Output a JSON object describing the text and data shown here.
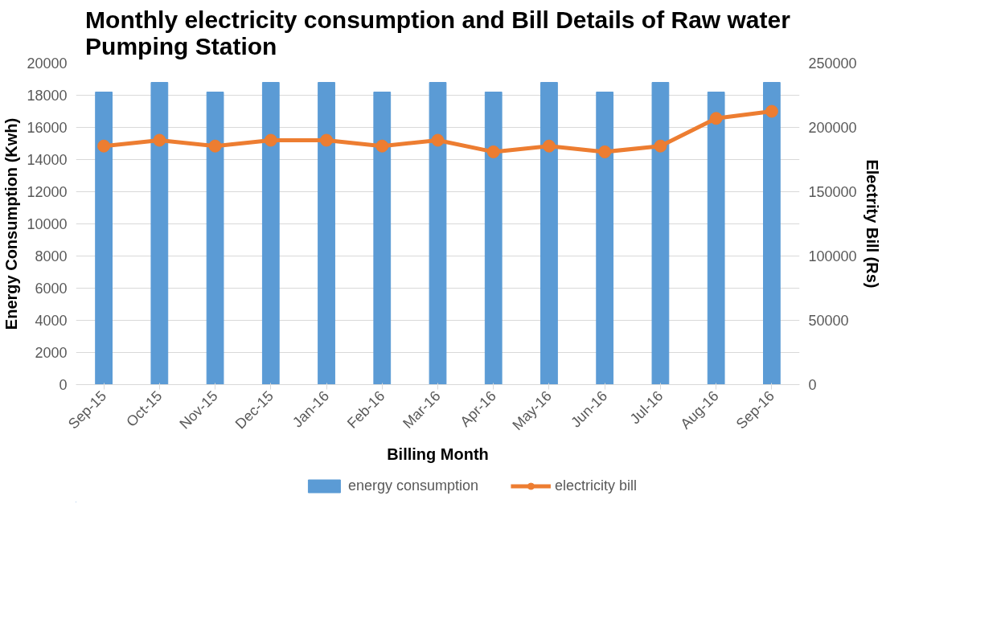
{
  "chart_data": {
    "type": "bar",
    "title": "Monthly electricity consumption and Bill Details of Raw water\nPumping Station",
    "xlabel": "Billing Month",
    "ylabel": "Energy Consumption (Kwh)",
    "y2label": "Electrity Bill (Rs)",
    "categories": [
      "Sep-15",
      "Oct-15",
      "Nov-15",
      "Dec-15",
      "Jan-16",
      "Feb-16",
      "Mar-16",
      "Apr-16",
      "May-16",
      "Jun-16",
      "Jul-16",
      "Aug-16",
      "Sep-16"
    ],
    "series": [
      {
        "name": "energy consumption",
        "color": "#5b9bd5",
        "values": [
          18200,
          18800,
          18200,
          18800,
          18800,
          18200,
          18800,
          18200,
          18800,
          18200,
          18800,
          18200,
          18800
        ]
      },
      {
        "name": "electricity bill",
        "type": "line",
        "axis": "y2",
        "color": "#ed7d31",
        "marker": "circle",
        "values": [
          185500,
          190000,
          185500,
          190000,
          190000,
          185500,
          190000,
          181000,
          185500,
          181000,
          185500,
          207000,
          212500
        ]
      }
    ],
    "ylim": [
      0,
      20000
    ],
    "yticks": [
      0,
      2000,
      4000,
      6000,
      8000,
      10000,
      12000,
      14000,
      16000,
      18000,
      20000
    ],
    "y2lim": [
      0,
      250000
    ],
    "y2ticks": [
      0,
      50000,
      100000,
      150000,
      200000,
      250000
    ],
    "grid": "y",
    "legend": "bottom"
  }
}
